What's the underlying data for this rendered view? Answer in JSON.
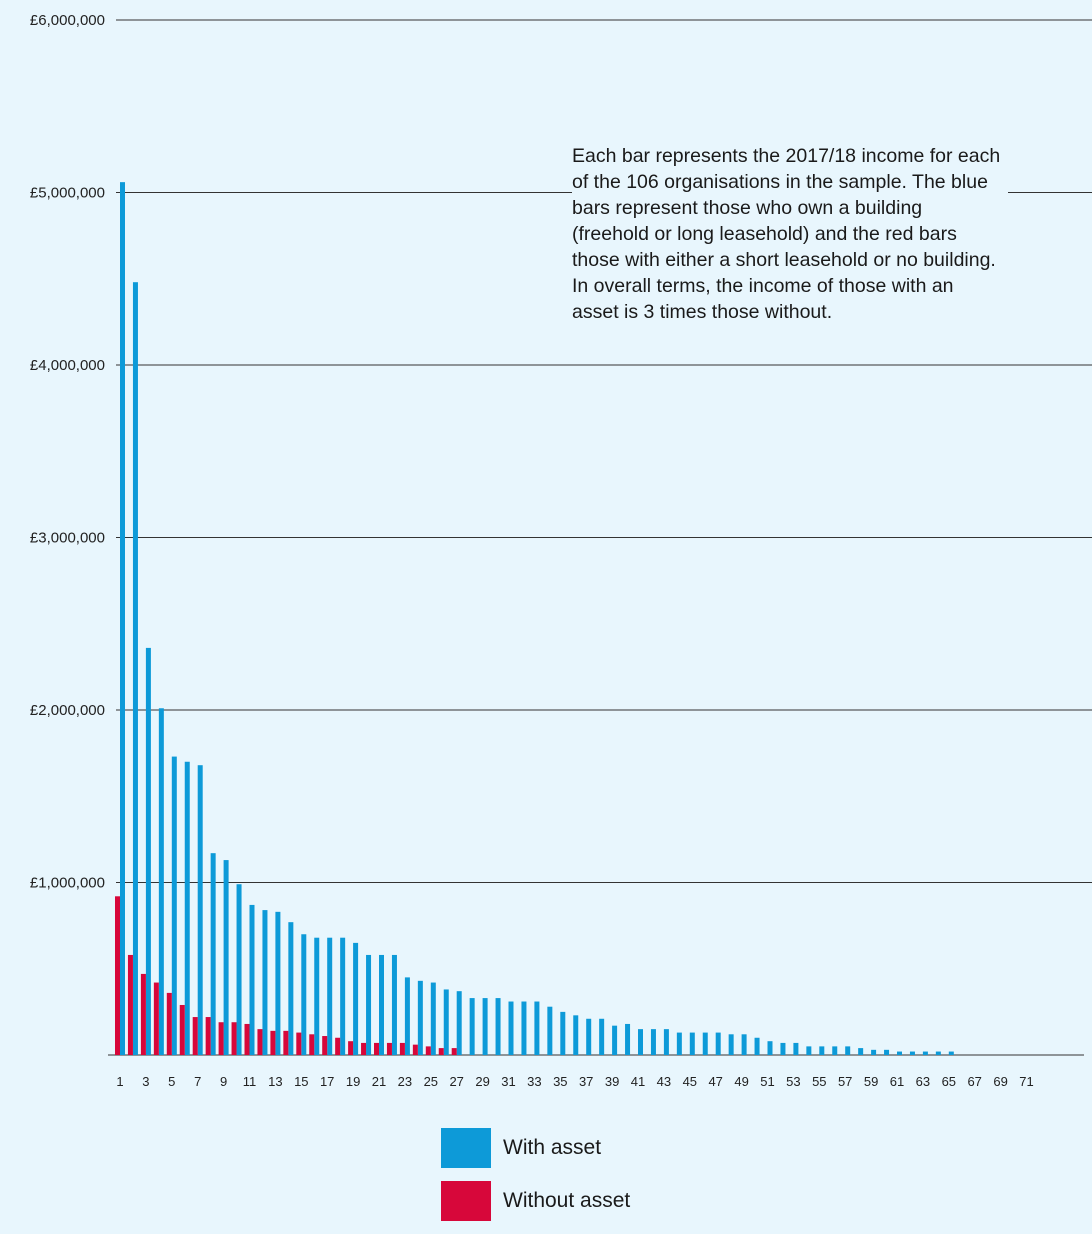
{
  "annotation": "Each bar represents the 2017/18 income for each of the 106 organisations in the sample. The blue bars represent those who own a building (freehold or long leasehold) and the red bars those with either a short leasehold or no building. In overall terms, the income of those with an asset is 3 times those without.",
  "colors": {
    "with_asset": "#0d9ad8",
    "without_asset": "#d7073a",
    "background": "#e8f6fd",
    "gridline": "#333333"
  },
  "chart_data": {
    "type": "bar",
    "title": "",
    "xlabel": "",
    "ylabel": "",
    "ylim": [
      0,
      6000000
    ],
    "yticks": [
      {
        "value": 6000000,
        "label": "£6,000,000"
      },
      {
        "value": 5000000,
        "label": "£5,000,000"
      },
      {
        "value": 4000000,
        "label": "£4,000,000"
      },
      {
        "value": 3000000,
        "label": "£3,000,000"
      },
      {
        "value": 2000000,
        "label": "£2,000,000"
      },
      {
        "value": 1000000,
        "label": "£1,000,000"
      }
    ],
    "categories": [
      "1",
      "2",
      "3",
      "4",
      "5",
      "6",
      "7",
      "8",
      "9",
      "10",
      "11",
      "12",
      "13",
      "14",
      "15",
      "16",
      "17",
      "18",
      "19",
      "20",
      "21",
      "22",
      "23",
      "24",
      "25",
      "26",
      "27",
      "28",
      "29",
      "30",
      "31",
      "32",
      "33",
      "34",
      "35",
      "36",
      "37",
      "38",
      "39",
      "40",
      "41",
      "42",
      "43",
      "44",
      "45",
      "46",
      "47",
      "48",
      "49",
      "50",
      "51",
      "52",
      "53",
      "54",
      "55",
      "56",
      "57",
      "58",
      "59",
      "60",
      "61",
      "62",
      "63",
      "64",
      "65",
      "66",
      "67",
      "68",
      "69",
      "70",
      "71"
    ],
    "xtick_labels": [
      "1",
      "3",
      "5",
      "7",
      "9",
      "11",
      "13",
      "15",
      "17",
      "19",
      "21",
      "23",
      "25",
      "27",
      "29",
      "31",
      "33",
      "35",
      "37",
      "39",
      "41",
      "43",
      "45",
      "47",
      "49",
      "51",
      "53",
      "55",
      "57",
      "59",
      "61",
      "63",
      "65",
      "67",
      "69",
      "71"
    ],
    "grid": true,
    "legend_placement": "bottom-center",
    "series": [
      {
        "name": "With asset",
        "values": [
          5060000,
          4480000,
          2360000,
          2010000,
          1730000,
          1700000,
          1680000,
          1170000,
          1130000,
          990000,
          870000,
          840000,
          830000,
          770000,
          700000,
          680000,
          680000,
          680000,
          650000,
          580000,
          580000,
          580000,
          450000,
          430000,
          420000,
          380000,
          370000,
          330000,
          330000,
          330000,
          310000,
          310000,
          310000,
          280000,
          250000,
          230000,
          210000,
          210000,
          170000,
          180000,
          150000,
          150000,
          150000,
          130000,
          130000,
          130000,
          130000,
          120000,
          120000,
          100000,
          80000,
          70000,
          70000,
          50000,
          50000,
          50000,
          50000,
          40000,
          30000,
          30000,
          20000,
          20000,
          20000,
          20000,
          20000,
          0,
          0,
          0,
          0,
          0,
          0
        ]
      },
      {
        "name": "Without asset",
        "values": [
          920000,
          580000,
          470000,
          420000,
          360000,
          290000,
          220000,
          220000,
          190000,
          190000,
          180000,
          150000,
          140000,
          140000,
          130000,
          120000,
          110000,
          100000,
          80000,
          70000,
          70000,
          70000,
          70000,
          60000,
          50000,
          40000,
          40000,
          0,
          0,
          0,
          0,
          0,
          0,
          0,
          0,
          0,
          0,
          0,
          0,
          0,
          0,
          0,
          0,
          0,
          0,
          0,
          0,
          0,
          0,
          0,
          0,
          0,
          0,
          0,
          0,
          0,
          0,
          0,
          0,
          0,
          0,
          0,
          0,
          0,
          0,
          0,
          0,
          0,
          0,
          0,
          0
        ]
      }
    ]
  }
}
